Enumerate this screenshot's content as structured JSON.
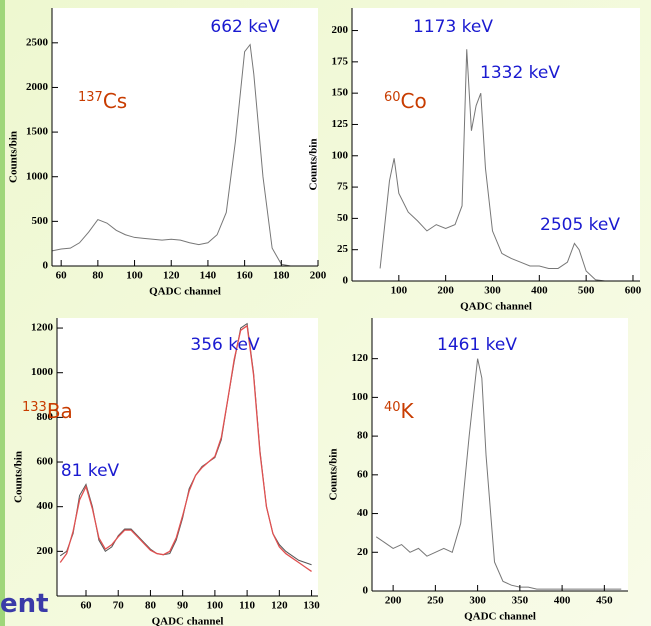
{
  "slide_fragment": "ent",
  "chart_data": [
    {
      "type": "line",
      "x_label": "QADC channel",
      "y_label": "Counts/bin",
      "isotope": {
        "mass": "137",
        "symbol": "Cs"
      },
      "annotations": [
        "662 keV"
      ],
      "xlim": [
        55,
        200
      ],
      "ylim": [
        0,
        2890
      ],
      "xticks": [
        60,
        80,
        100,
        120,
        140,
        160,
        180,
        200
      ],
      "yticks": [
        0,
        500,
        1000,
        1500,
        2000,
        2500
      ],
      "series": [
        {
          "name": "data",
          "color": "#777777",
          "x": [
            55,
            60,
            65,
            70,
            75,
            80,
            85,
            90,
            95,
            100,
            105,
            110,
            115,
            120,
            125,
            130,
            135,
            140,
            145,
            150,
            155,
            160,
            163,
            165,
            170,
            175,
            180,
            185,
            190,
            195,
            200
          ],
          "values": [
            170,
            190,
            200,
            260,
            380,
            520,
            480,
            400,
            350,
            320,
            310,
            300,
            290,
            300,
            290,
            260,
            240,
            260,
            350,
            600,
            1400,
            2400,
            2480,
            2150,
            1000,
            200,
            20,
            0,
            0,
            0,
            0
          ]
        }
      ]
    },
    {
      "type": "line",
      "x_label": "QADC channel",
      "y_label": "Counts/bin",
      "isotope": {
        "mass": "60",
        "symbol": "Co"
      },
      "annotations": [
        "1173 keV",
        "1332 keV",
        "2505 keV"
      ],
      "xlim": [
        0,
        615
      ],
      "ylim": [
        0,
        218
      ],
      "xticks": [
        100,
        200,
        300,
        400,
        500,
        600
      ],
      "yticks": [
        0,
        25,
        50,
        75,
        100,
        125,
        150,
        175,
        200
      ],
      "series": [
        {
          "name": "data",
          "color": "#777777",
          "x": [
            60,
            80,
            90,
            100,
            120,
            140,
            160,
            180,
            200,
            220,
            235,
            245,
            255,
            265,
            275,
            285,
            300,
            320,
            340,
            360,
            380,
            400,
            420,
            440,
            460,
            475,
            485,
            500,
            520,
            540,
            560,
            580,
            600
          ],
          "values": [
            10,
            80,
            98,
            70,
            55,
            48,
            40,
            45,
            42,
            45,
            60,
            185,
            120,
            140,
            150,
            90,
            40,
            22,
            18,
            15,
            12,
            12,
            10,
            10,
            15,
            30,
            25,
            8,
            1,
            0,
            0,
            0,
            0
          ]
        }
      ]
    },
    {
      "type": "line",
      "x_label": "QADC channel",
      "y_label": "Counts/bin",
      "isotope": {
        "mass": "133",
        "symbol": "Ba"
      },
      "annotations": [
        "356 keV",
        "81 keV"
      ],
      "xlim": [
        51,
        132
      ],
      "ylim": [
        0,
        1245
      ],
      "xticks": [
        60,
        70,
        80,
        90,
        100,
        110,
        120,
        130
      ],
      "yticks": [
        200,
        400,
        600,
        800,
        1000,
        1200
      ],
      "series": [
        {
          "name": "data",
          "color": "#555555",
          "x": [
            52,
            54,
            56,
            58,
            60,
            62,
            64,
            66,
            68,
            70,
            72,
            74,
            76,
            78,
            80,
            82,
            84,
            86,
            88,
            90,
            92,
            94,
            96,
            98,
            100,
            102,
            104,
            106,
            108,
            110,
            112,
            114,
            116,
            118,
            120,
            122,
            124,
            126,
            128,
            130
          ],
          "values": [
            180,
            200,
            280,
            450,
            500,
            400,
            250,
            200,
            220,
            270,
            300,
            300,
            270,
            240,
            210,
            190,
            185,
            190,
            250,
            350,
            480,
            540,
            580,
            600,
            620,
            700,
            880,
            1050,
            1200,
            1220,
            1000,
            650,
            400,
            280,
            230,
            200,
            180,
            160,
            150,
            140
          ]
        },
        {
          "name": "fit",
          "color": "#e05050",
          "x": [
            52,
            54,
            56,
            58,
            60,
            62,
            64,
            66,
            68,
            70,
            72,
            74,
            76,
            78,
            80,
            82,
            84,
            86,
            88,
            90,
            92,
            94,
            96,
            98,
            100,
            102,
            104,
            106,
            108,
            110,
            112,
            114,
            116,
            118,
            120,
            122,
            124,
            126,
            128,
            130
          ],
          "values": [
            150,
            190,
            290,
            430,
            490,
            390,
            260,
            210,
            230,
            265,
            295,
            295,
            265,
            235,
            205,
            190,
            185,
            200,
            260,
            360,
            470,
            540,
            575,
            600,
            625,
            710,
            880,
            1060,
            1190,
            1210,
            990,
            640,
            400,
            280,
            220,
            190,
            170,
            150,
            130,
            110
          ]
        }
      ]
    },
    {
      "type": "line",
      "x_label": "QADC channel",
      "y_label": "Counts/bin",
      "isotope": {
        "mass": "40",
        "symbol": "K"
      },
      "annotations": [
        "1461 keV"
      ],
      "xlim": [
        175,
        478
      ],
      "ylim": [
        0,
        141
      ],
      "xticks": [
        200,
        250,
        300,
        350,
        400,
        450
      ],
      "yticks": [
        0,
        20,
        40,
        60,
        80,
        100,
        120
      ],
      "series": [
        {
          "name": "data",
          "color": "#777777",
          "x": [
            180,
            190,
            200,
            210,
            220,
            230,
            240,
            250,
            260,
            270,
            280,
            290,
            300,
            305,
            310,
            320,
            330,
            340,
            350,
            360,
            370,
            380,
            390,
            400,
            410,
            420,
            430,
            440,
            450,
            460,
            470
          ],
          "values": [
            28,
            25,
            22,
            24,
            20,
            22,
            18,
            20,
            22,
            20,
            35,
            80,
            120,
            110,
            70,
            15,
            5,
            3,
            2,
            2,
            1,
            1,
            1,
            1,
            1,
            1,
            1,
            1,
            1,
            1,
            1
          ]
        }
      ]
    }
  ]
}
